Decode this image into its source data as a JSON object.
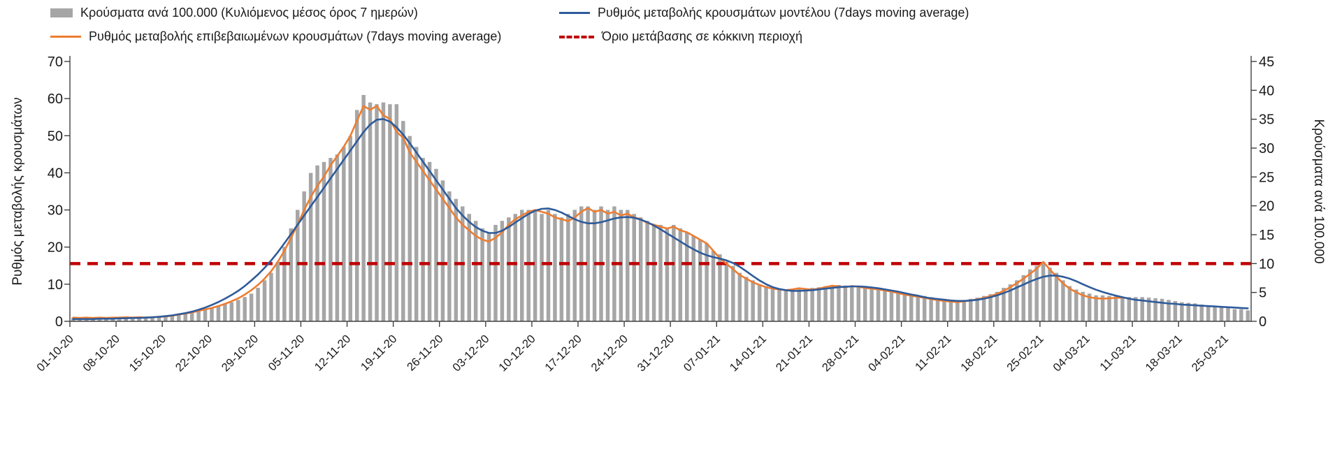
{
  "colors": {
    "bar": "#a6a6a6",
    "model": "#2e5b9a",
    "confirmed": "#ed7d31",
    "threshold": "#c00000",
    "axis_line": "#404040",
    "axis_text": "#1a1a1a"
  },
  "chart_data": {
    "type": "combo-bar-line",
    "left_axis": {
      "label": "Ρυθμός μεταβολής κρουσμάτων",
      "min": 0,
      "max": 70,
      "ticks": [
        0,
        10,
        20,
        30,
        40,
        50,
        60,
        70
      ]
    },
    "right_axis": {
      "label": "Κρούσματα ανά 100.000",
      "min": 0,
      "max": 45,
      "ticks": [
        0,
        5,
        10,
        15,
        20,
        25,
        30,
        35,
        40,
        45
      ]
    },
    "x_axis": {
      "n_points": 179,
      "tick_indices": [
        0,
        7,
        14,
        21,
        28,
        35,
        42,
        49,
        56,
        63,
        70,
        77,
        84,
        91,
        98,
        105,
        112,
        119,
        126,
        133,
        140,
        147,
        154,
        161,
        168,
        175
      ],
      "tick_labels": [
        "01-10-20",
        "08-10-20",
        "15-10-20",
        "22-10-20",
        "29-10-20",
        "05-11-20",
        "12-11-20",
        "19-11-20",
        "26-11-20",
        "03-12-20",
        "10-12-20",
        "17-12-20",
        "24-12-20",
        "31-12-20",
        "07-01-21",
        "14-01-21",
        "21-01-21",
        "28-01-21",
        "04-02-21",
        "11-02-21",
        "18-02-21",
        "25-02-21",
        "04-03-21",
        "11-03-21",
        "18-03-21",
        "25-03-21"
      ]
    },
    "bars": {
      "name": "Κρούσματα ανά 100.000 (Κυλιόμενος μέσος όρος 7 ημερών)",
      "type": "bar",
      "axis": "right",
      "values": [
        0.6,
        0.6,
        0.6,
        0.6,
        0.6,
        0.6,
        0.6,
        0.7,
        0.7,
        0.7,
        0.7,
        0.8,
        0.8,
        0.9,
        1.0,
        1.1,
        1.3,
        1.5,
        1.7,
        1.9,
        2.1,
        2.4,
        2.7,
        3.0,
        3.3,
        3.7,
        4.2,
        4.8,
        5.8,
        7.1,
        8.4,
        10.3,
        12.9,
        16.1,
        19.3,
        22.5,
        25.7,
        27.0,
        27.6,
        28.3,
        28.9,
        30.2,
        32.1,
        36.6,
        39.2,
        37.9,
        37.6,
        37.9,
        37.6,
        37.6,
        34.7,
        32.1,
        30.2,
        28.3,
        27.6,
        26.4,
        24.4,
        22.5,
        21.2,
        19.9,
        18.6,
        17.4,
        16.1,
        15.4,
        16.7,
        17.4,
        18.0,
        18.6,
        19.3,
        19.3,
        19.3,
        18.6,
        19.3,
        18.6,
        18.0,
        18.6,
        19.3,
        19.9,
        19.9,
        19.3,
        19.9,
        19.3,
        19.9,
        19.3,
        19.3,
        18.6,
        18.0,
        17.4,
        16.7,
        16.7,
        16.1,
        16.7,
        16.1,
        15.4,
        14.8,
        14.1,
        13.5,
        12.2,
        11.6,
        10.3,
        9.6,
        8.4,
        7.7,
        7.1,
        6.4,
        6.1,
        5.8,
        5.7,
        5.5,
        5.5,
        5.6,
        5.7,
        5.8,
        5.9,
        6.1,
        6.2,
        6.3,
        6.2,
        6.1,
        6.1,
        6.0,
        5.8,
        5.7,
        5.5,
        5.3,
        5.1,
        4.8,
        4.6,
        4.5,
        4.4,
        4.2,
        4.0,
        3.9,
        3.7,
        3.6,
        3.7,
        3.9,
        4.1,
        4.4,
        4.7,
        5.1,
        5.8,
        6.4,
        7.1,
        8.0,
        9.0,
        9.6,
        10.3,
        9.3,
        8.4,
        7.1,
        6.1,
        5.5,
        5.1,
        4.8,
        4.5,
        4.5,
        4.4,
        4.4,
        4.2,
        4.2,
        4.2,
        4.2,
        4.1,
        4.0,
        3.9,
        3.7,
        3.5,
        3.3,
        3.2,
        3.1,
        2.9,
        2.7,
        2.6,
        2.4,
        2.3,
        2.1,
        2.1,
        1.9
      ]
    },
    "confirmed": {
      "name": "Ρυθμός μεταβολής επιβεβαιωμένων κρουσμάτων (7days moving average)",
      "type": "line",
      "axis": "left",
      "values": [
        1.0,
        0.9,
        1.0,
        0.9,
        1.0,
        0.9,
        1.0,
        1.0,
        1.1,
        1.0,
        1.1,
        1.0,
        1.1,
        1.2,
        1.3,
        1.5,
        1.8,
        2.1,
        2.4,
        2.8,
        3.2,
        3.6,
        4.1,
        4.7,
        5.4,
        6.2,
        7.2,
        8.4,
        9.8,
        11.5,
        13.5,
        16.0,
        19.0,
        22.5,
        26.0,
        30.0,
        33.5,
        36.5,
        39.0,
        42.0,
        44.5,
        47.0,
        50.0,
        54.0,
        58.0,
        57.0,
        58.0,
        55.5,
        54.5,
        51.0,
        49.5,
        45.5,
        43.0,
        40.5,
        38.0,
        35.5,
        33.0,
        30.5,
        28.0,
        26.0,
        24.5,
        23.0,
        22.0,
        21.5,
        22.5,
        24.0,
        26.0,
        27.5,
        28.5,
        29.5,
        30.0,
        29.5,
        29.0,
        28.0,
        27.5,
        27.0,
        28.0,
        29.5,
        30.5,
        29.5,
        30.0,
        29.0,
        29.5,
        28.5,
        29.0,
        28.0,
        27.5,
        26.5,
        26.0,
        25.5,
        25.0,
        25.5,
        24.5,
        24.0,
        23.0,
        22.0,
        21.0,
        19.0,
        17.0,
        15.5,
        14.0,
        12.5,
        11.5,
        10.5,
        9.8,
        9.2,
        8.8,
        8.6,
        8.4,
        8.6,
        8.9,
        8.7,
        8.5,
        8.8,
        9.2,
        9.6,
        9.4,
        9.2,
        9.5,
        9.3,
        9.0,
        8.8,
        8.6,
        8.3,
        8.0,
        7.6,
        7.2,
        6.9,
        6.6,
        6.3,
        6.0,
        5.7,
        5.5,
        5.3,
        5.2,
        5.4,
        5.6,
        5.9,
        6.3,
        6.8,
        7.4,
        8.2,
        9.2,
        10.3,
        11.5,
        12.8,
        14.2,
        16.0,
        14.0,
        12.0,
        10.2,
        8.8,
        7.8,
        7.0,
        6.5,
        6.2,
        6.1,
        6.2,
        6.3,
        6.4
      ]
    },
    "model": {
      "name": "Ρυθμός μεταβολής κρουσμάτων μοντέλου (7days moving average)",
      "type": "line",
      "axis": "left",
      "values": [
        0.6,
        0.6,
        0.6,
        0.6,
        0.7,
        0.7,
        0.7,
        0.8,
        0.8,
        0.9,
        0.9,
        1.0,
        1.1,
        1.2,
        1.4,
        1.6,
        1.9,
        2.2,
        2.6,
        3.1,
        3.7,
        4.4,
        5.2,
        6.1,
        7.1,
        8.2,
        9.5,
        11.0,
        12.6,
        14.4,
        16.4,
        18.6,
        21.0,
        23.5,
        26.0,
        28.5,
        31.0,
        33.5,
        36.0,
        38.5,
        41.0,
        43.5,
        46.0,
        48.5,
        51.0,
        53.0,
        54.3,
        54.5,
        53.8,
        52.3,
        50.3,
        48.0,
        45.5,
        43.0,
        40.5,
        38.0,
        35.5,
        33.0,
        30.5,
        28.5,
        26.8,
        25.4,
        24.4,
        23.8,
        23.8,
        24.4,
        25.4,
        26.6,
        27.8,
        28.9,
        29.8,
        30.3,
        30.4,
        30.0,
        29.3,
        28.4,
        27.5,
        26.8,
        26.4,
        26.4,
        26.7,
        27.2,
        27.7,
        28.0,
        28.1,
        27.9,
        27.4,
        26.7,
        25.8,
        24.8,
        23.7,
        22.6,
        21.5,
        20.4,
        19.4,
        18.5,
        17.8,
        17.3,
        16.9,
        16.4,
        15.7,
        14.7,
        13.5,
        12.2,
        11.0,
        10.0,
        9.2,
        8.7,
        8.4,
        8.2,
        8.2,
        8.3,
        8.4,
        8.6,
        8.8,
        9.0,
        9.2,
        9.3,
        9.4,
        9.4,
        9.3,
        9.1,
        8.9,
        8.6,
        8.3,
        8.0,
        7.6,
        7.2,
        6.9,
        6.5,
        6.2,
        6.0,
        5.8,
        5.6,
        5.5,
        5.5,
        5.6,
        5.8,
        6.1,
        6.5,
        7.0,
        7.6,
        8.3,
        9.1,
        9.9,
        10.7,
        11.4,
        12.0,
        12.3,
        12.3,
        12.0,
        11.5,
        10.8,
        10.0,
        9.2,
        8.5,
        7.9,
        7.4,
        6.9,
        6.5,
        6.1,
        5.8,
        5.6,
        5.4,
        5.2,
        5.0,
        4.8,
        4.7,
        4.5,
        4.4,
        4.3,
        4.2,
        4.1,
        4.0,
        3.9,
        3.8,
        3.7,
        3.6,
        3.5
      ]
    },
    "threshold": {
      "name": "Όριο μετάβασης σε κόκκινη περιοχή",
      "type": "dashed-line",
      "axis": "right",
      "value": 10
    }
  }
}
